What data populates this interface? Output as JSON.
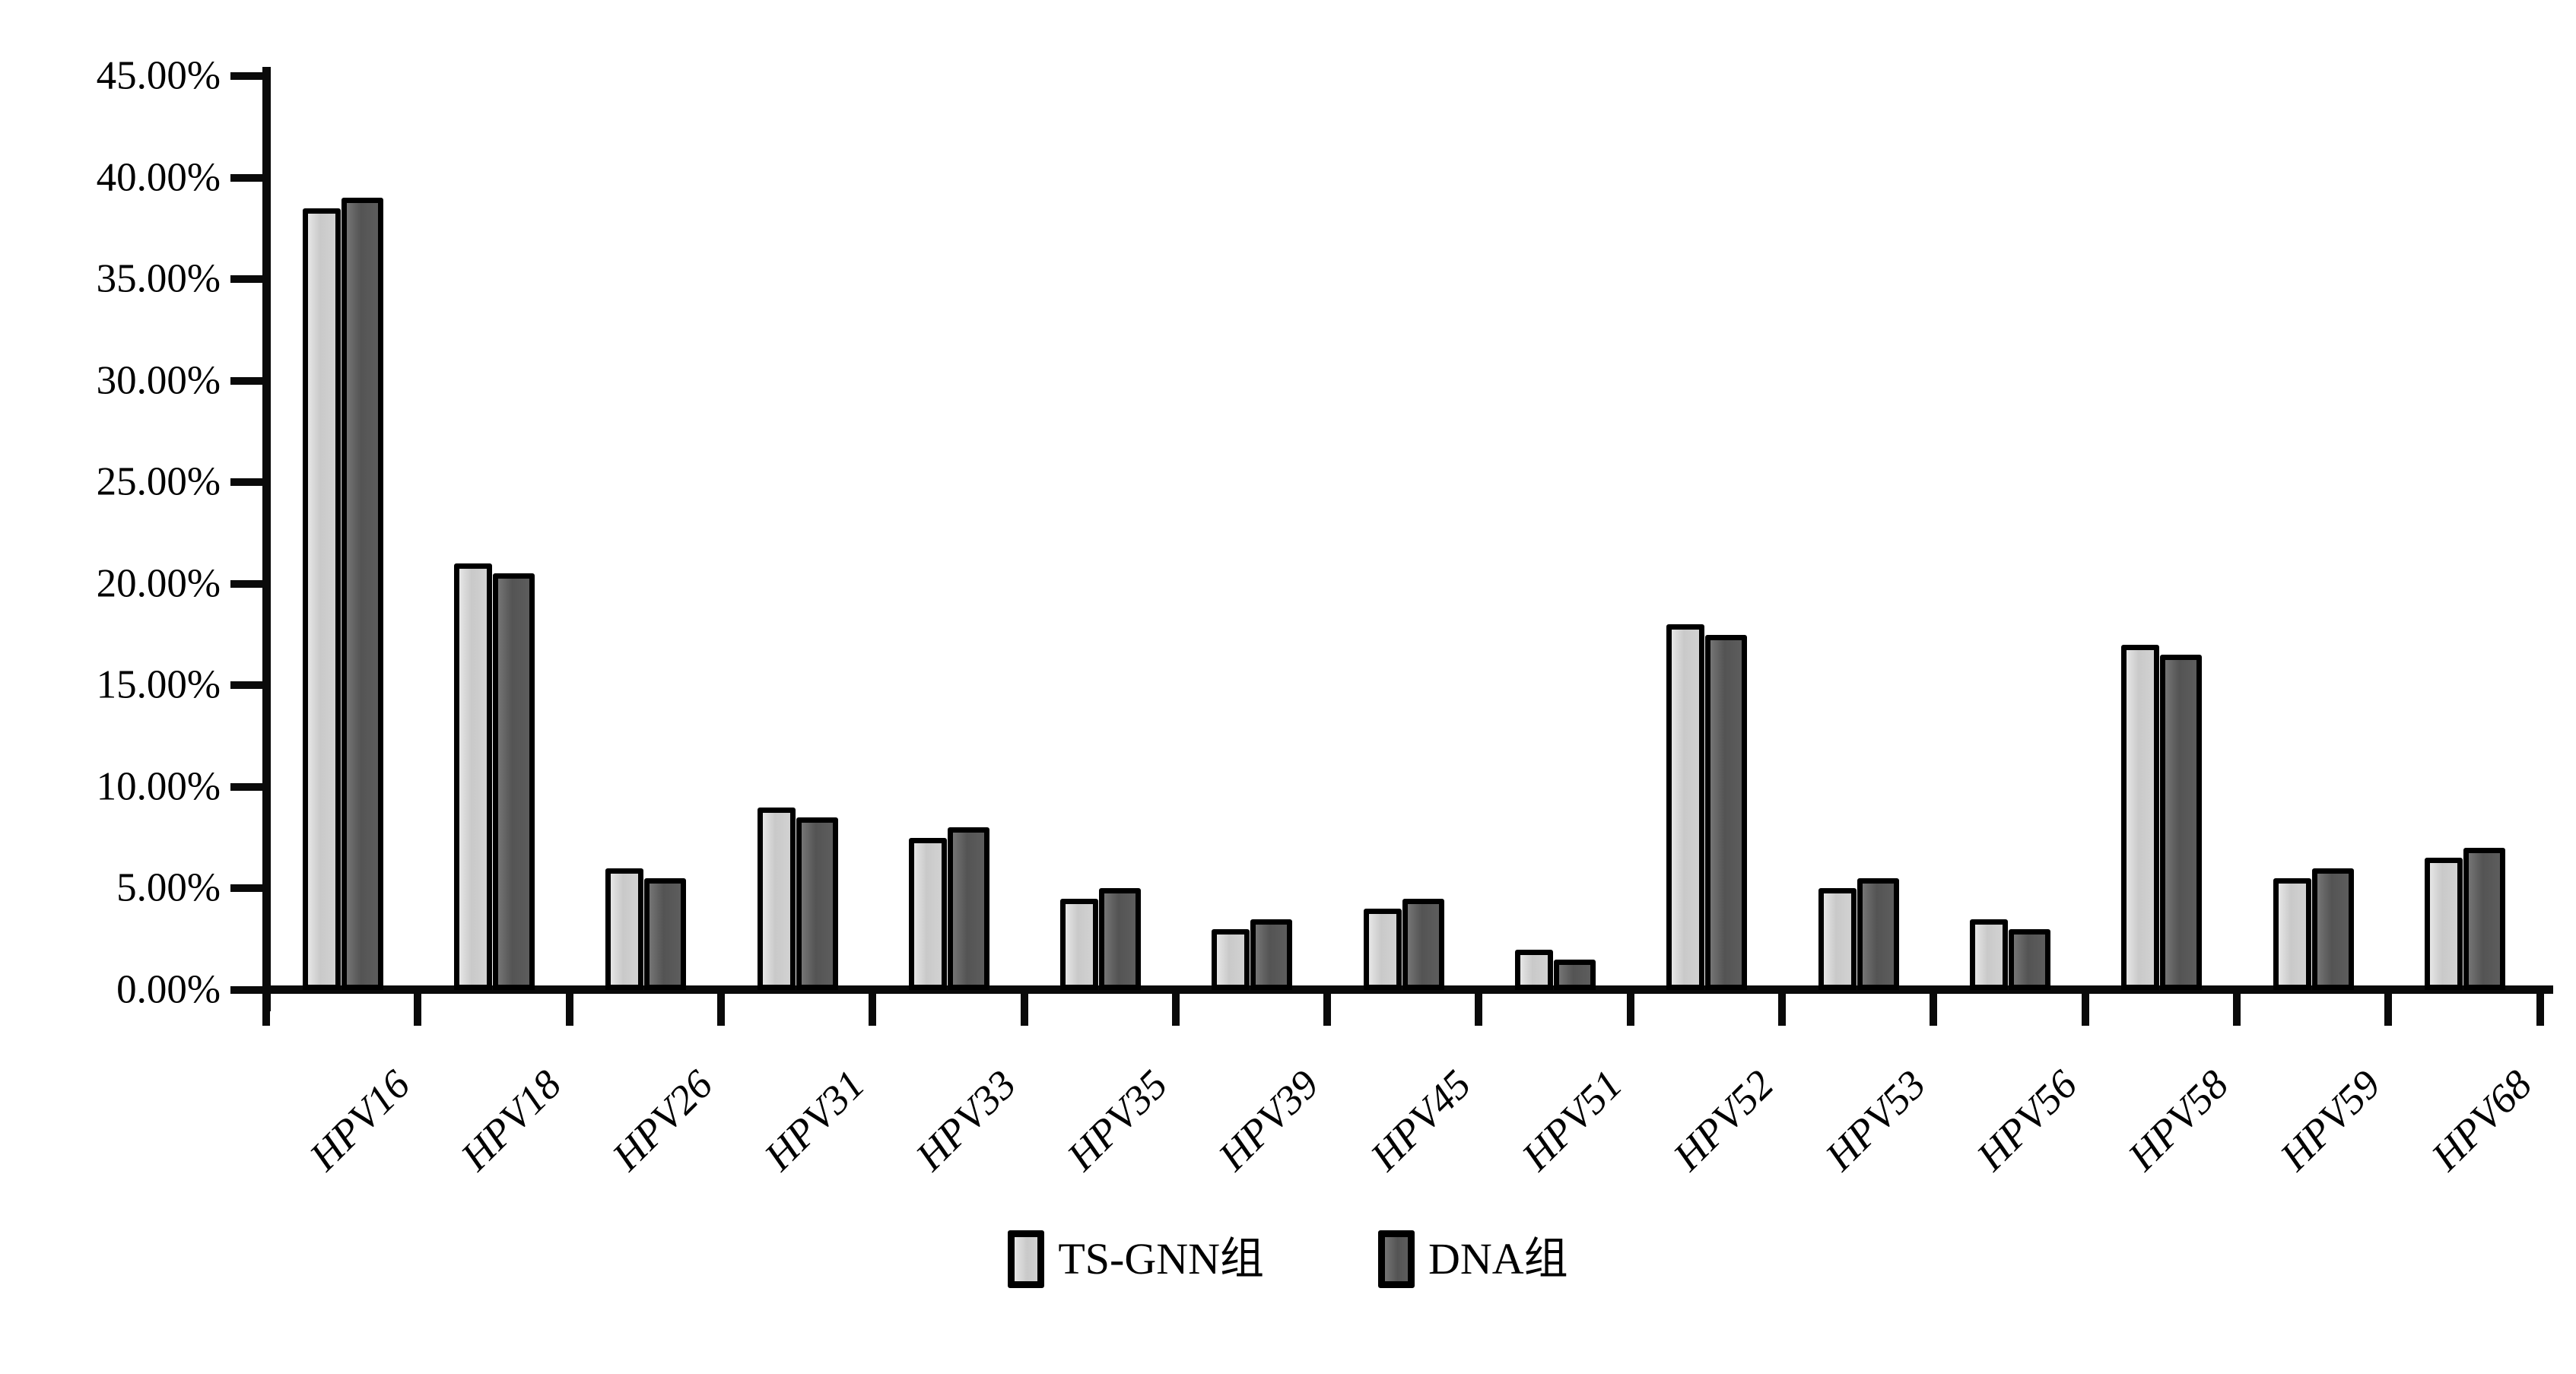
{
  "chart_data": {
    "type": "bar",
    "title": "",
    "xlabel": "",
    "ylabel": "",
    "categories": [
      "HPV16",
      "HPV18",
      "HPV26",
      "HPV31",
      "HPV33",
      "HPV35",
      "HPV39",
      "HPV45",
      "HPV51",
      "HPV52",
      "HPV53",
      "HPV56",
      "HPV58",
      "HPV59",
      "HPV68"
    ],
    "series": [
      {
        "name": "TS-GNN组",
        "color": "#cfcfcf",
        "values": [
          38.5,
          21.0,
          6.0,
          9.0,
          7.5,
          4.5,
          3.0,
          4.0,
          2.0,
          18.0,
          5.0,
          3.5,
          17.0,
          5.5,
          6.5
        ]
      },
      {
        "name": "DNA组",
        "color": "#5a5a5a",
        "values": [
          39.0,
          20.5,
          5.5,
          8.5,
          8.0,
          5.0,
          3.5,
          4.5,
          1.5,
          17.5,
          5.5,
          3.0,
          16.5,
          6.0,
          7.0
        ]
      }
    ],
    "ylim": [
      0,
      45
    ],
    "ytick_step": 5,
    "ytick_labels": [
      "0.00%",
      "5.00%",
      "10.00%",
      "15.00%",
      "20.00%",
      "25.00%",
      "30.00%",
      "35.00%",
      "40.00%",
      "45.00%"
    ],
    "grid": false,
    "legend_position": "bottom",
    "bar_outline_color": "#000000",
    "axis_color": "#0a0a0a"
  },
  "legend": {
    "items": [
      {
        "label": "TS-GNN组",
        "color": "#cfcfcf"
      },
      {
        "label": "DNA组",
        "color": "#5a5a5a"
      }
    ]
  }
}
